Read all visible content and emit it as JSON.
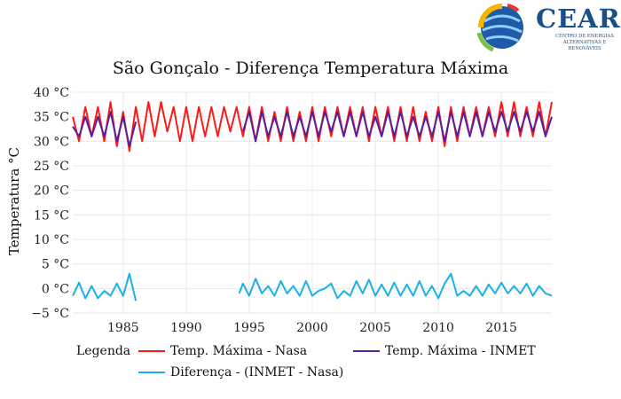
{
  "logo": {
    "name": "CEAR",
    "subtitle": "CENTRO DE ENERGIAS ALTERNATIVAS E RENOVÁVEIS"
  },
  "legend": {
    "title": "Legenda"
  },
  "colors": {
    "nasa": "#ff1a1a",
    "inmet": "#5b1f9a",
    "diff": "#1ab0e8",
    "grid": "#e8e8e8"
  },
  "chart_data": {
    "type": "line",
    "title": "São Gonçalo - Diferença Temperatura Máxima",
    "xlabel": "",
    "ylabel": "Temperatura °C",
    "xlim": [
      1981.0,
      2019.0
    ],
    "ylim": [
      -5,
      40
    ],
    "x_ticks": [
      1985,
      1990,
      1995,
      2000,
      2005,
      2010,
      2015
    ],
    "y_ticks": [
      -5,
      0,
      5,
      10,
      15,
      20,
      25,
      30,
      35,
      40
    ],
    "y_tick_labels": [
      "−5 °C",
      "0 °C",
      "5 °C",
      "10 °C",
      "15 °C",
      "20 °C",
      "25 °C",
      "30 °C",
      "35 °C",
      "40 °C"
    ],
    "grid": true,
    "legend_position": "bottom",
    "series": [
      {
        "name": "Temp. Máxima - Nasa",
        "x": [
          1981.0,
          1981.5,
          1982.0,
          1982.5,
          1983.0,
          1983.5,
          1984.0,
          1984.5,
          1985.0,
          1985.5,
          1986.0,
          1986.5,
          1987.0,
          1987.5,
          1988.0,
          1988.5,
          1989.0,
          1989.5,
          1990.0,
          1990.5,
          1991.0,
          1991.5,
          1992.0,
          1992.5,
          1993.0,
          1993.5,
          1994.0,
          1994.5,
          1995.0,
          1995.5,
          1996.0,
          1996.5,
          1997.0,
          1997.5,
          1998.0,
          1998.5,
          1999.0,
          1999.5,
          2000.0,
          2000.5,
          2001.0,
          2001.5,
          2002.0,
          2002.5,
          2003.0,
          2003.5,
          2004.0,
          2004.5,
          2005.0,
          2005.5,
          2006.0,
          2006.5,
          2007.0,
          2007.5,
          2008.0,
          2008.5,
          2009.0,
          2009.5,
          2010.0,
          2010.5,
          2011.0,
          2011.5,
          2012.0,
          2012.5,
          2013.0,
          2013.5,
          2014.0,
          2014.5,
          2015.0,
          2015.5,
          2016.0,
          2016.5,
          2017.0,
          2017.5,
          2018.0,
          2018.5,
          2019.0
        ],
        "y": [
          35,
          30,
          37,
          31,
          37,
          30,
          38,
          29,
          36,
          28,
          37,
          30,
          38,
          31,
          38,
          32,
          37,
          30,
          37,
          30,
          37,
          31,
          37,
          31,
          37,
          32,
          37,
          31,
          37,
          30,
          37,
          30,
          36,
          30,
          37,
          30,
          36,
          30,
          37,
          30,
          37,
          31,
          37,
          31,
          37,
          31,
          37,
          30,
          37,
          31,
          37,
          30,
          37,
          30,
          37,
          30,
          36,
          30,
          37,
          29,
          37,
          30,
          37,
          31,
          37,
          31,
          37,
          31,
          38,
          31,
          38,
          31,
          37,
          31,
          38,
          31,
          38
        ]
      },
      {
        "name": "Temp. Máxima - INMET",
        "x": [
          1981.0,
          1981.5,
          1982.0,
          1982.5,
          1983.0,
          1983.5,
          1984.0,
          1984.5,
          1985.0,
          1985.5,
          1986.0,
          null,
          1994.5,
          1995.0,
          1995.5,
          1996.0,
          1996.5,
          1997.0,
          1997.5,
          1998.0,
          1998.5,
          1999.0,
          1999.5,
          2000.0,
          2000.5,
          2001.0,
          2001.5,
          2002.0,
          2002.5,
          2003.0,
          2003.5,
          2004.0,
          2004.5,
          2005.0,
          2005.5,
          2006.0,
          2006.5,
          2007.0,
          2007.5,
          2008.0,
          2008.5,
          2009.0,
          2009.5,
          2010.0,
          2010.5,
          2011.0,
          2011.5,
          2012.0,
          2012.5,
          2013.0,
          2013.5,
          2014.0,
          2014.5,
          2015.0,
          2015.5,
          2016.0,
          2016.5,
          2017.0,
          2017.5,
          2018.0,
          2018.5,
          2019.0
        ],
        "y": [
          33,
          31,
          35,
          31,
          35,
          31,
          36,
          30,
          35,
          29,
          34,
          null,
          32,
          36,
          30,
          36,
          31,
          35,
          31,
          36,
          31,
          35,
          31,
          36,
          31,
          36,
          32,
          36,
          31,
          36,
          31,
          36,
          31,
          35,
          31,
          36,
          31,
          36,
          31,
          35,
          31,
          35,
          31,
          36,
          30,
          36,
          31,
          36,
          31,
          36,
          31,
          36,
          32,
          36,
          32,
          36,
          32,
          36,
          32,
          36,
          31,
          35
        ]
      },
      {
        "name": "Diferença - (INMET - Nasa)",
        "x": [
          1981.0,
          1981.5,
          1982.0,
          1982.5,
          1983.0,
          1983.5,
          1984.0,
          1984.5,
          1985.0,
          1985.5,
          1986.0,
          null,
          1994.2,
          1994.5,
          1995.0,
          1995.5,
          1996.0,
          1996.5,
          1997.0,
          1997.5,
          1998.0,
          1998.5,
          1999.0,
          1999.5,
          2000.0,
          2000.5,
          2001.0,
          2001.5,
          2002.0,
          2002.5,
          2003.0,
          2003.5,
          2004.0,
          2004.5,
          2005.0,
          2005.5,
          2006.0,
          2006.5,
          2007.0,
          2007.5,
          2008.0,
          2008.5,
          2009.0,
          2009.5,
          2010.0,
          2010.5,
          2011.0,
          2011.5,
          2012.0,
          2012.5,
          2013.0,
          2013.5,
          2014.0,
          2014.5,
          2015.0,
          2015.5,
          2016.0,
          2016.5,
          2017.0,
          2017.5,
          2018.0,
          2018.5,
          2019.0
        ],
        "y": [
          -1.5,
          1.2,
          -2,
          0.5,
          -2,
          -0.5,
          -1.5,
          1,
          -1.5,
          3,
          -2.5,
          null,
          -1,
          1,
          -1.5,
          2,
          -1,
          0.5,
          -1.5,
          1.5,
          -1,
          0.5,
          -1.5,
          1.5,
          -1.5,
          -0.5,
          0,
          1,
          -2,
          -0.5,
          -1.5,
          1.5,
          -1,
          1.8,
          -1.5,
          0.8,
          -1.5,
          1.2,
          -1.5,
          0.8,
          -1.5,
          1.5,
          -1.5,
          0.5,
          -2,
          1,
          3,
          -1.5,
          -0.5,
          -1.5,
          0.5,
          -1.5,
          0.8,
          -1,
          1.2,
          -1,
          0.5,
          -1,
          1,
          -1.5,
          0.5,
          -1,
          -1.5
        ]
      }
    ]
  }
}
